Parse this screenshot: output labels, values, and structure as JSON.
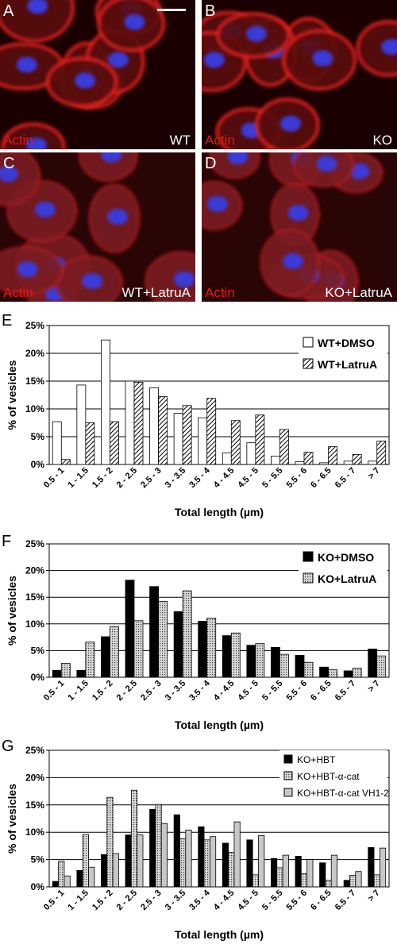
{
  "image_panels": [
    {
      "letter": "A",
      "stain": "Actin",
      "condition": "WT"
    },
    {
      "letter": "B",
      "stain": "Actin",
      "condition": "KO"
    },
    {
      "letter": "C",
      "stain": "Actin",
      "condition": "WT+LatruA"
    },
    {
      "letter": "D",
      "stain": "Actin",
      "condition": "KO+LatruA"
    }
  ],
  "chart_data": [
    {
      "type": "bar",
      "label": "E",
      "y_label": "% of vesicles",
      "x_label": "Total length (µm)",
      "categories": [
        "0.5 - 1",
        "1 - 1.5",
        "1.5 - 2",
        "2 - 2.5",
        "2.5 - 3",
        "3 - 3.5",
        "3.5 - 4",
        "4 - 4.5",
        "4.5 - 5",
        "5 - 5.5",
        "5.5 - 6",
        "6 - 6.5",
        "6.5 - 7",
        "> 7"
      ],
      "series": [
        {
          "name": "WT+DMSO",
          "color": "#ffffff",
          "values": [
            7.7,
            14.3,
            22.4,
            15.0,
            13.8,
            9.2,
            8.4,
            2.1,
            3.9,
            1.5,
            0.5,
            0.3,
            0.6,
            0.6
          ]
        },
        {
          "name": "WT+LatruA",
          "color": "#ffffff",
          "pattern": "hatch",
          "values": [
            0.9,
            7.5,
            7.7,
            14.8,
            12.2,
            10.6,
            11.9,
            7.9,
            8.9,
            6.3,
            2.2,
            3.2,
            1.8,
            4.2
          ]
        }
      ],
      "ylim": [
        0,
        25
      ],
      "yticks": [
        {
          "value": 0,
          "label": "0%"
        },
        {
          "value": 5,
          "label": "5%"
        },
        {
          "value": 10,
          "label": "10%"
        },
        {
          "value": 15,
          "label": "15%"
        },
        {
          "value": 20,
          "label": "20%"
        },
        {
          "value": 25,
          "label": "25%"
        }
      ],
      "grid": true,
      "legend": "top-right"
    },
    {
      "type": "bar",
      "label": "F",
      "y_label": "% of vesicles",
      "x_label": "Total length (µm)",
      "categories": [
        "0.5 - 1",
        "1 - 1.5",
        "1.5 - 2",
        "2 - 2.5",
        "2.5 - 3",
        "3 - 3.5",
        "3.5 - 4",
        "4 - 4.5",
        "4.5 - 5",
        "5 - 5.5",
        "5.5 - 6",
        "6 - 6.5",
        "6.5 - 7",
        "> 7"
      ],
      "series": [
        {
          "name": "KO+DMSO",
          "color": "#000000",
          "values": [
            1.3,
            1.3,
            7.6,
            18.2,
            17.0,
            12.3,
            10.5,
            7.8,
            6.0,
            5.6,
            4.1,
            1.9,
            1.2,
            5.3
          ]
        },
        {
          "name": "KO+LatruA",
          "color": "#c8c8c8",
          "pattern": "dots",
          "values": [
            2.6,
            6.6,
            9.5,
            10.6,
            14.2,
            16.2,
            11.1,
            8.3,
            6.3,
            4.3,
            2.8,
            1.4,
            1.7,
            4.0
          ]
        }
      ],
      "ylim": [
        0,
        25
      ],
      "yticks": [
        {
          "value": 0,
          "label": "0%"
        },
        {
          "value": 5,
          "label": "5%"
        },
        {
          "value": 10,
          "label": "10%"
        },
        {
          "value": 15,
          "label": "15%"
        },
        {
          "value": 20,
          "label": "20%"
        },
        {
          "value": 25,
          "label": "25%"
        }
      ],
      "grid": true,
      "legend": "top-right"
    },
    {
      "type": "bar",
      "label": "G",
      "y_label": "% of vesicles",
      "x_label": "Total length (µm)",
      "categories": [
        "0.5 - 1",
        "1 - 1.5",
        "1.5 - 2",
        "2 - 2.5",
        "2.5 - 3",
        "3 - 3.5",
        "3.5 - 4",
        "4 - 4.5",
        "4.5 - 5",
        "5 - 5.5",
        "5.5 - 6",
        "6 - 6.5",
        "6.5 - 7",
        "> 7"
      ],
      "series": [
        {
          "name": "KO+HBT",
          "color": "#000000",
          "values": [
            1.0,
            3.0,
            5.9,
            9.5,
            14.2,
            13.2,
            11.0,
            8.0,
            8.6,
            5.2,
            5.6,
            4.4,
            1.2,
            7.2
          ]
        },
        {
          "name": "KO+HBT-α-cat",
          "color": "#a0a0a0",
          "pattern": "dots",
          "values": [
            4.7,
            9.6,
            16.4,
            17.7,
            15.1,
            8.8,
            8.6,
            6.3,
            2.2,
            3.5,
            2.4,
            1.2,
            2.1,
            2.2
          ]
        },
        {
          "name": "KO+HBT-α-cat VH1-2",
          "color": "#c8c8c8",
          "values": [
            2.0,
            3.6,
            6.1,
            9.5,
            11.6,
            10.4,
            9.2,
            11.9,
            9.4,
            5.8,
            5.0,
            5.8,
            2.8,
            7.1
          ]
        }
      ],
      "ylim": [
        0,
        25
      ],
      "yticks": [
        {
          "value": 0,
          "label": "0%"
        },
        {
          "value": 5,
          "label": "5%"
        },
        {
          "value": 10,
          "label": "10%"
        },
        {
          "value": 15,
          "label": "15%"
        },
        {
          "value": 20,
          "label": "20%"
        },
        {
          "value": 25,
          "label": "25%"
        }
      ],
      "grid": true,
      "legend": "top-right"
    }
  ]
}
